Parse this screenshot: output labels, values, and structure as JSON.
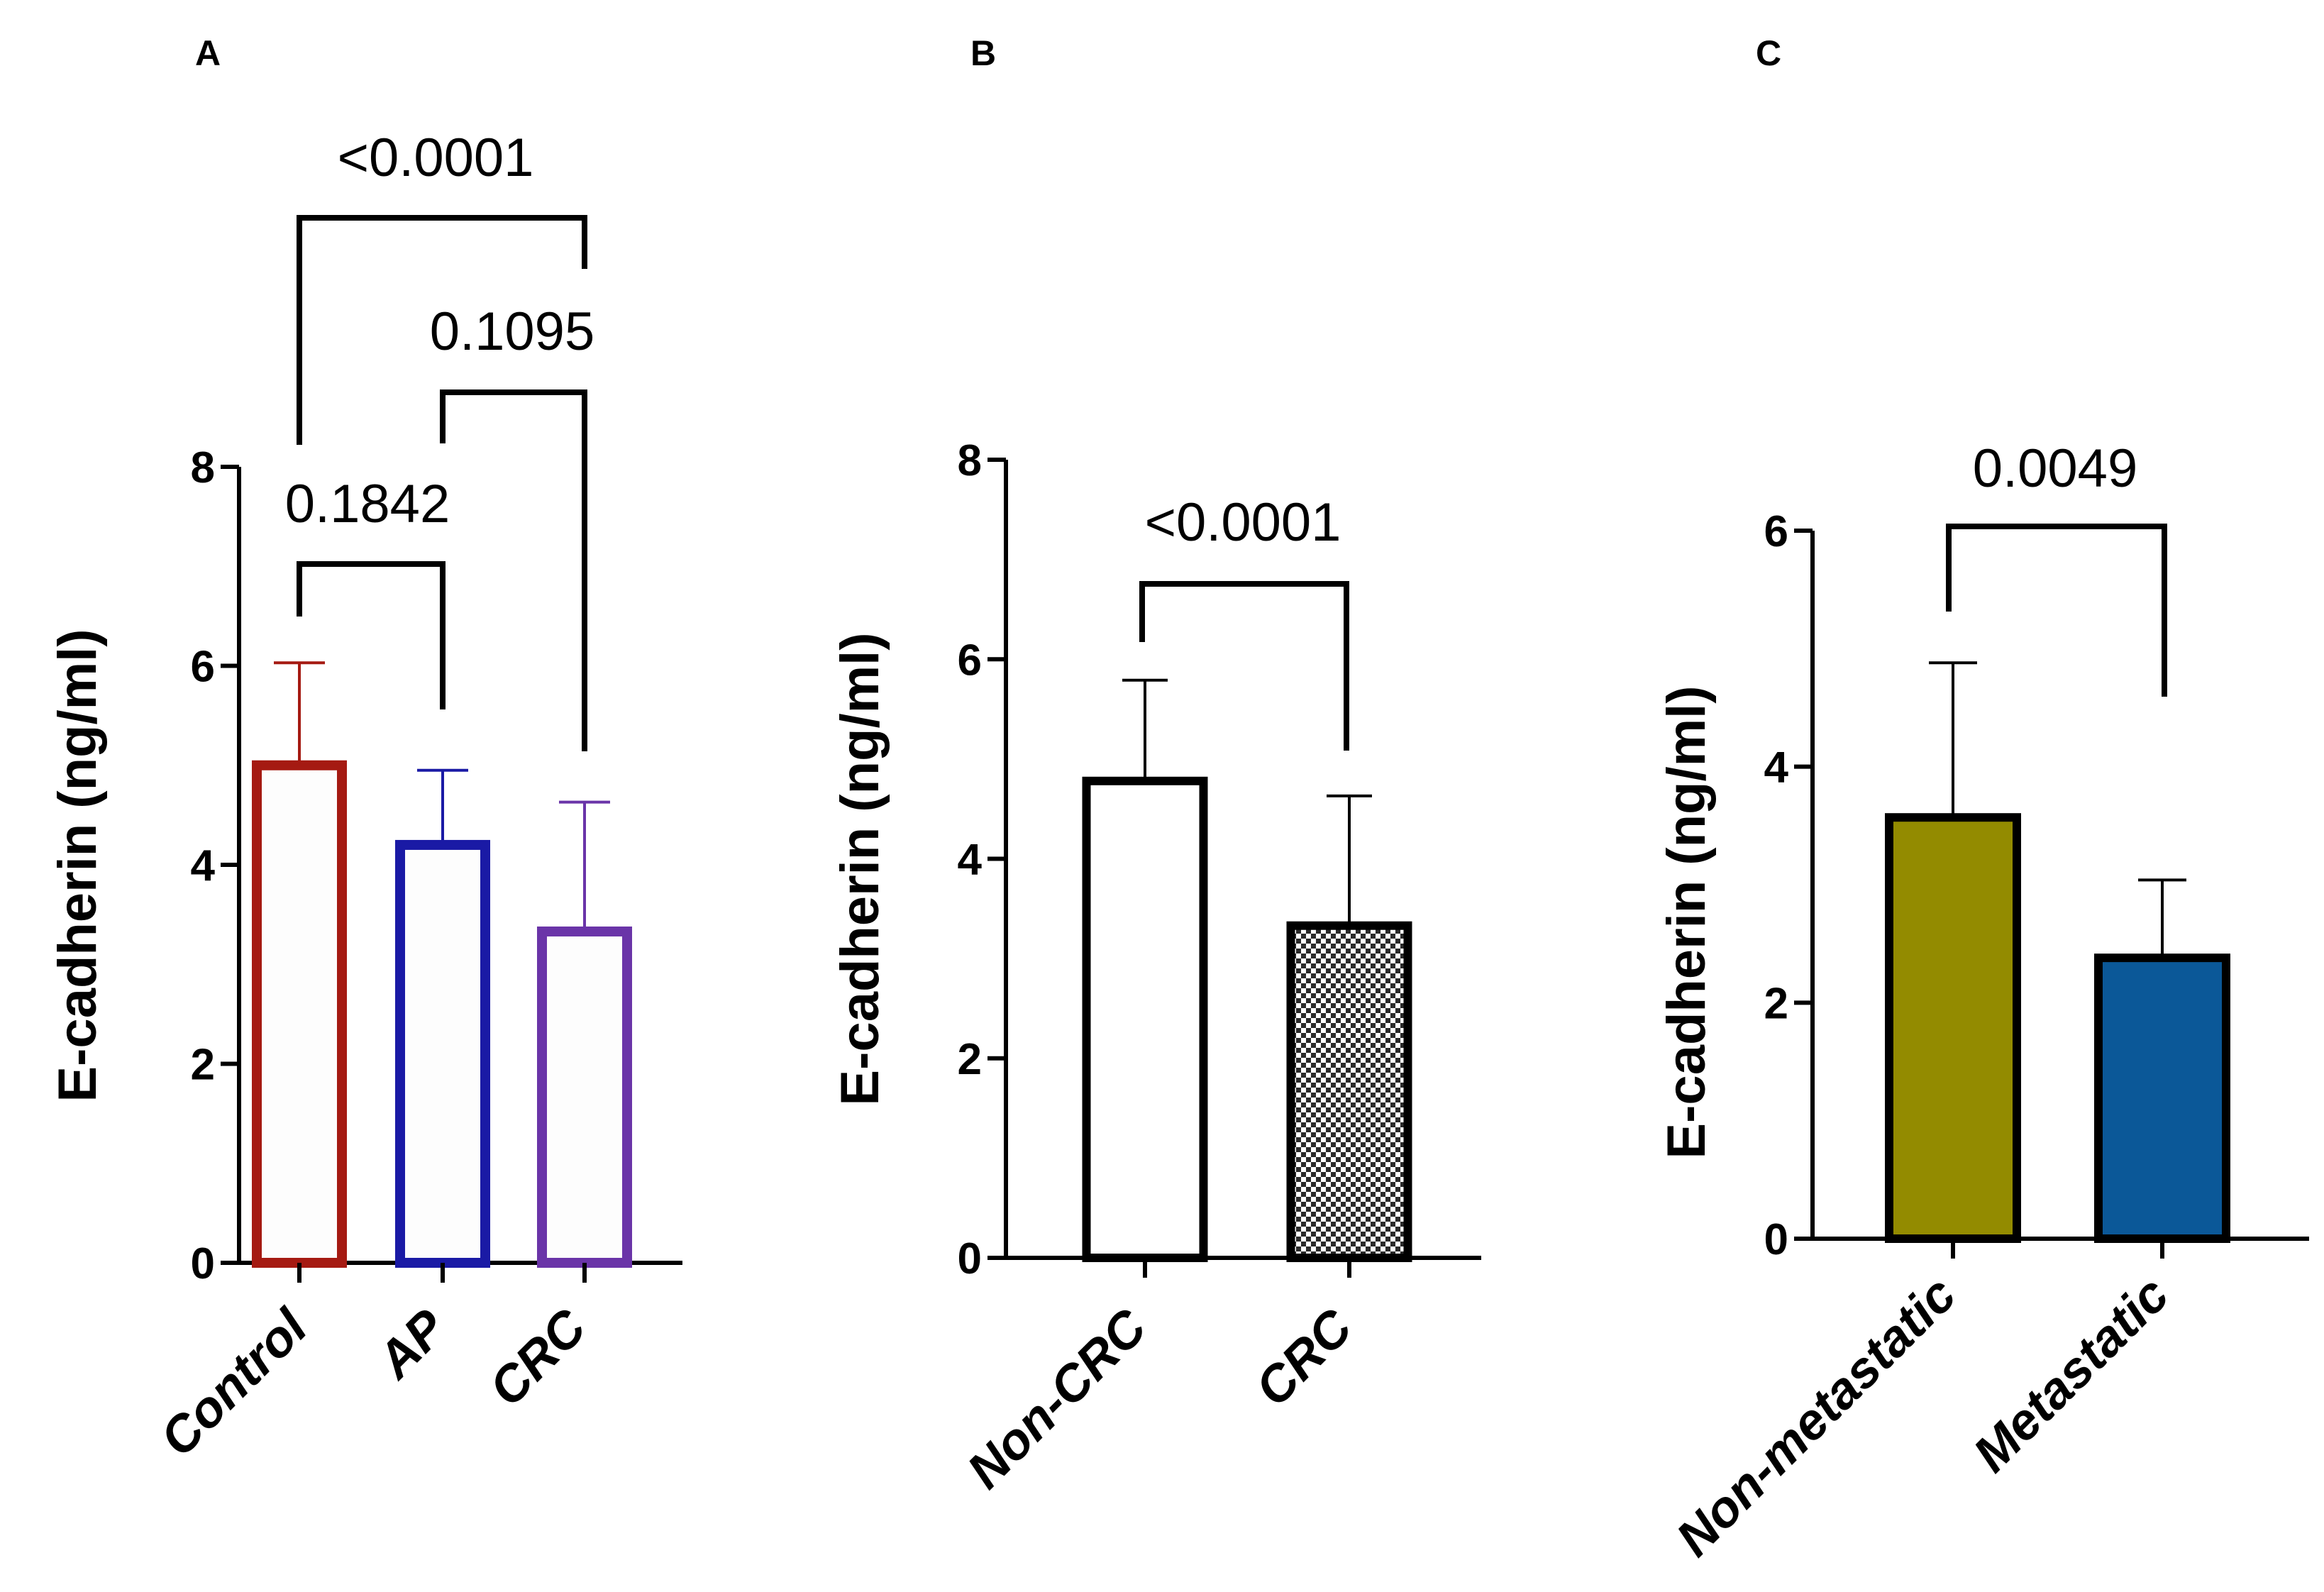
{
  "chart_data": [
    {
      "type": "bar",
      "panel_label": "A",
      "categories": [
        "Control",
        "AP",
        "CRC"
      ],
      "values": [
        5.0,
        4.2,
        3.33
      ],
      "errors": [
        1.03,
        0.75,
        1.3
      ],
      "bar_colors": [
        "#a51a12",
        "#1a1aa5",
        "#6a34a8"
      ],
      "bar_fill": "#fdfdfd",
      "ylabel": "E-cadherin (ng/ml)",
      "ylim": [
        0,
        8
      ],
      "yticks": [
        "0",
        "2",
        "4",
        "6",
        "8"
      ],
      "comparisons": [
        {
          "groups": [
            "Control",
            "AP"
          ],
          "p": "0.1842"
        },
        {
          "groups": [
            "AP",
            "CRC"
          ],
          "p": "0.1095"
        },
        {
          "groups": [
            "Control",
            "CRC"
          ],
          "p": "<0.0001"
        }
      ]
    },
    {
      "type": "bar",
      "panel_label": "B",
      "categories": [
        "Non-CRC",
        "CRC"
      ],
      "values": [
        4.78,
        3.33
      ],
      "errors": [
        1.01,
        1.3
      ],
      "bar_fills": [
        "#ffffff",
        "checkered"
      ],
      "ylabel": "E-cadherin (ng/ml)",
      "ylim": [
        0,
        8
      ],
      "yticks": [
        "0",
        "2",
        "4",
        "6",
        "8"
      ],
      "comparisons": [
        {
          "groups": [
            "Non-CRC",
            "CRC"
          ],
          "p": "<0.0001"
        }
      ]
    },
    {
      "type": "bar",
      "panel_label": "C",
      "categories": [
        "Non-metastatic",
        "Metastatic"
      ],
      "values": [
        3.57,
        2.38
      ],
      "errors": [
        1.31,
        0.66
      ],
      "bar_fills": [
        "#938b00",
        "#0b5898"
      ],
      "ylabel": "E-cadherin (ng/ml)",
      "ylim": [
        0,
        6
      ],
      "yticks": [
        "0",
        "2",
        "4",
        "6"
      ],
      "comparisons": [
        {
          "groups": [
            "Non-metastatic",
            "Metastatic"
          ],
          "p": "0.0049"
        }
      ]
    }
  ]
}
